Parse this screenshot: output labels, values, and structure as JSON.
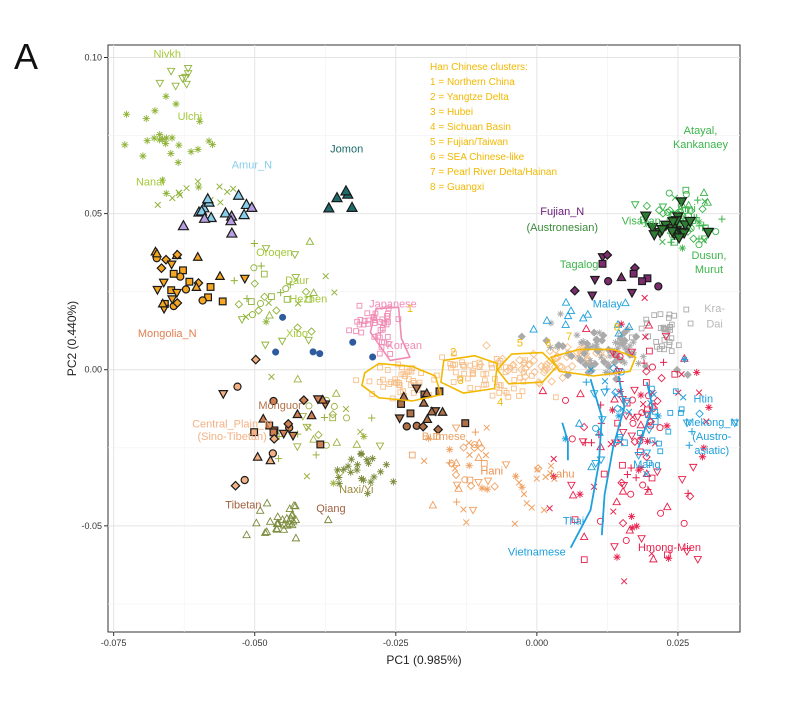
{
  "panel_label": "A",
  "chart_data": {
    "type": "scatter",
    "xlabel": "PC1 (0.985%)",
    "ylabel": "PC2 (0.440%)",
    "xlim": [
      -0.076,
      0.036
    ],
    "ylim": [
      -0.084,
      0.104
    ],
    "x_ticks": [
      -0.075,
      -0.05,
      -0.025,
      0.0,
      0.025
    ],
    "x_tick_labels": [
      "-0.075",
      "-0.050",
      "-0.025",
      "0.000",
      "0.025"
    ],
    "y_ticks": [
      -0.05,
      0.0,
      0.05,
      0.1
    ],
    "y_tick_labels": [
      "-0.05",
      "0.00",
      "0.05",
      "0.10"
    ],
    "grid": true,
    "legend_title": "Han Chinese clusters:",
    "legend_items": [
      "1 = Northern China",
      "2 = Yangtze Delta",
      "3 = Hubei",
      "4 = Sichuan Basin",
      "5 = Fujian/Taiwan",
      "6 = SEA Chinese-like",
      "7 = Pearl River Delta/Hainan",
      "8 = Guangxi"
    ],
    "legend_color": "#f2b800",
    "labels": [
      {
        "text": "Nivkh",
        "x": -0.0655,
        "y": 0.1,
        "color": "#a3c93a"
      },
      {
        "text": "Ulchi",
        "x": -0.0615,
        "y": 0.08,
        "color": "#a3c93a"
      },
      {
        "text": "Nanai",
        "x": -0.0685,
        "y": 0.059,
        "color": "#a3c93a"
      },
      {
        "text": "Amur_N",
        "x": -0.0505,
        "y": 0.0645,
        "color": "#87ceeb"
      },
      {
        "text": "Jomon",
        "x": -0.0337,
        "y": 0.0695,
        "color": "#1d6b6b"
      },
      {
        "text": "Oroqen",
        "x": -0.0465,
        "y": 0.0365,
        "color": "#a3c93a"
      },
      {
        "text": "Daur",
        "x": -0.0425,
        "y": 0.0275,
        "color": "#a3c93a"
      },
      {
        "text": "Hezhen",
        "x": -0.0405,
        "y": 0.0215,
        "color": "#a3c93a"
      },
      {
        "text": "Xibo",
        "x": -0.0425,
        "y": 0.0105,
        "color": "#a3c93a"
      },
      {
        "text": "Japanese",
        "x": -0.0255,
        "y": 0.02,
        "color": "#f08cb4"
      },
      {
        "text": "Korean",
        "x": -0.0235,
        "y": 0.0067,
        "color": "#f08cb4"
      },
      {
        "text": "Mongolia_N",
        "x": -0.0655,
        "y": 0.0105,
        "color": "#e08050"
      },
      {
        "text": "Monguor",
        "x": -0.0455,
        "y": -0.0125,
        "color": "#b07048"
      },
      {
        "text": "Central_Plain_N",
        "x": -0.054,
        "y": -0.0185,
        "color": "#f4b183"
      },
      {
        "text": "(Sino-Tibetan)",
        "x": -0.054,
        "y": -0.0225,
        "color": "#f4b183"
      },
      {
        "text": "Burmese",
        "x": -0.0165,
        "y": -0.0225,
        "color": "#e8a060"
      },
      {
        "text": "Naxi/Yi",
        "x": -0.032,
        "y": -0.0395,
        "color": "#9a8a3a"
      },
      {
        "text": "Tibetan",
        "x": -0.052,
        "y": -0.0445,
        "color": "#a06040"
      },
      {
        "text": "Qiang",
        "x": -0.0365,
        "y": -0.0455,
        "color": "#a06040"
      },
      {
        "text": "Hani",
        "x": -0.008,
        "y": -0.0335,
        "color": "#e89050"
      },
      {
        "text": "Lahu",
        "x": 0.0045,
        "y": -0.0345,
        "color": "#e89050"
      },
      {
        "text": "Thai",
        "x": 0.0065,
        "y": -0.0495,
        "color": "#1ea0dc"
      },
      {
        "text": "Vietnamese",
        "x": 0.0,
        "y": -0.0595,
        "color": "#1ea0dc"
      },
      {
        "text": "Hmong-Mien",
        "x": 0.0235,
        "y": -0.058,
        "color": "#e8204c"
      },
      {
        "text": "Mang",
        "x": 0.0195,
        "y": -0.0315,
        "color": "#1ea0dc"
      },
      {
        "text": "Mekong_N",
        "x": 0.031,
        "y": -0.018,
        "color": "#1ea0dc"
      },
      {
        "text": "(Austro-",
        "x": 0.031,
        "y": -0.0225,
        "color": "#1ea0dc"
      },
      {
        "text": "asiatic)",
        "x": 0.031,
        "y": -0.027,
        "color": "#1ea0dc"
      },
      {
        "text": "Htin",
        "x": 0.0295,
        "y": -0.0105,
        "color": "#1ea0dc"
      },
      {
        "text": "Kra-",
        "x": 0.0315,
        "y": 0.0185,
        "color": "#b8b8b8"
      },
      {
        "text": "Dai",
        "x": 0.0315,
        "y": 0.0135,
        "color": "#b8b8b8"
      },
      {
        "text": "Malay",
        "x": 0.0125,
        "y": 0.02,
        "color": "#1ea0dc"
      },
      {
        "text": "Tagalog",
        "x": 0.0075,
        "y": 0.0325,
        "color": "#3cb44b"
      },
      {
        "text": "Visayan",
        "x": 0.0185,
        "y": 0.0465,
        "color": "#3cb44b"
      },
      {
        "text": "Ami",
        "x": 0.0265,
        "y": 0.0505,
        "color": "#3cb44b"
      },
      {
        "text": "Dusun,",
        "x": 0.0305,
        "y": 0.0355,
        "color": "#3cb44b"
      },
      {
        "text": "Murut",
        "x": 0.0305,
        "y": 0.031,
        "color": "#3cb44b"
      },
      {
        "text": "Atayal,",
        "x": 0.029,
        "y": 0.0755,
        "color": "#3cb44b"
      },
      {
        "text": "Kankanaey",
        "x": 0.029,
        "y": 0.071,
        "color": "#3cb44b"
      },
      {
        "text": "Fujian_N",
        "x": 0.0045,
        "y": 0.0495,
        "color": "#6a1b7a"
      },
      {
        "text": "(Austronesian)",
        "x": 0.0045,
        "y": 0.0445,
        "color": "#3a8a3a"
      },
      {
        "text": "1",
        "x": -0.0225,
        "y": 0.0185,
        "color": "#f2b800"
      },
      {
        "text": "2",
        "x": -0.0148,
        "y": 0.0045,
        "color": "#f2b800"
      },
      {
        "text": "3",
        "x": -0.0135,
        "y": -0.0045,
        "color": "#f2b800"
      },
      {
        "text": "4",
        "x": -0.0065,
        "y": -0.0115,
        "color": "#f2b800"
      },
      {
        "text": "5",
        "x": -0.003,
        "y": 0.0075,
        "color": "#f2b800"
      },
      {
        "text": "6",
        "x": 0.002,
        "y": 0.0075,
        "color": "#f2b800"
      },
      {
        "text": "7",
        "x": 0.0057,
        "y": 0.0095,
        "color": "#f2b800"
      },
      {
        "text": "8",
        "x": 0.0142,
        "y": 0.0125,
        "color": "#f2b800"
      }
    ],
    "clusters": [
      {
        "name": "nivkh",
        "cx": -0.0645,
        "cy": 0.094,
        "sx": 0.0035,
        "sy": 0.004,
        "n": 8,
        "color": "#8fb339",
        "shape": "tri-down-open",
        "seed": 11
      },
      {
        "name": "ulchi",
        "cx": -0.0655,
        "cy": 0.075,
        "sx": 0.003,
        "sy": 0.007,
        "n": 26,
        "color": "#8fb339",
        "shape": "star",
        "seed": 12
      },
      {
        "name": "nanai",
        "cx": -0.0605,
        "cy": 0.057,
        "sx": 0.003,
        "sy": 0.003,
        "n": 12,
        "color": "#8fb339",
        "shape": "x",
        "seed": 13
      },
      {
        "name": "amur",
        "cx": -0.055,
        "cy": 0.052,
        "sx": 0.003,
        "sy": 0.003,
        "n": 10,
        "color": "#87ceeb",
        "shape": "tri-up-filled-dark",
        "seed": 14
      },
      {
        "name": "jomon",
        "cx": -0.034,
        "cy": 0.055,
        "sx": 0.0012,
        "sy": 0.0035,
        "n": 5,
        "color": "#1d6b6b",
        "shape": "tri-up-filled-dark",
        "seed": 15
      },
      {
        "name": "mongolia",
        "cx": -0.062,
        "cy": 0.03,
        "sx": 0.0038,
        "sy": 0.006,
        "n": 32,
        "color": "#f5a623",
        "shape": "mixed-filled",
        "seed": 16
      },
      {
        "name": "tungusic",
        "cx": -0.046,
        "cy": 0.025,
        "sx": 0.005,
        "sy": 0.008,
        "n": 40,
        "color": "#8fb339",
        "shape": "mixed-open",
        "seed": 17
      },
      {
        "name": "japanese",
        "cx": -0.0285,
        "cy": 0.016,
        "sx": 0.0018,
        "sy": 0.0025,
        "n": 32,
        "color": "#f08cb4",
        "shape": "square-open",
        "seed": 18
      },
      {
        "name": "korean",
        "cx": -0.027,
        "cy": 0.009,
        "sx": 0.001,
        "sy": 0.002,
        "n": 8,
        "color": "#f08cb4",
        "shape": "square-open",
        "seed": 19
      },
      {
        "name": "han1",
        "cx": -0.0245,
        "cy": -0.004,
        "sx": 0.0035,
        "sy": 0.003,
        "n": 40,
        "color": "#f7c08a",
        "shape": "square-open",
        "seed": 20
      },
      {
        "name": "han2",
        "cx": -0.012,
        "cy": 0.0,
        "sx": 0.003,
        "sy": 0.003,
        "n": 30,
        "color": "#f7c08a",
        "shape": "square-open",
        "seed": 21
      },
      {
        "name": "han4",
        "cx": -0.006,
        "cy": -0.004,
        "sx": 0.003,
        "sy": 0.003,
        "n": 30,
        "color": "#f7c08a",
        "shape": "square-open",
        "seed": 22
      },
      {
        "name": "han5",
        "cx": -0.001,
        "cy": 0.001,
        "sx": 0.003,
        "sy": 0.0025,
        "n": 30,
        "color": "#f7c08a",
        "shape": "diamond-open",
        "seed": 23
      },
      {
        "name": "han67",
        "cx": 0.0065,
        "cy": 0.004,
        "sx": 0.003,
        "sy": 0.0025,
        "n": 26,
        "color": "#f7c08a",
        "shape": "diamond-open",
        "seed": 24
      },
      {
        "name": "tibetan",
        "cx": -0.045,
        "cy": -0.048,
        "sx": 0.0025,
        "sy": 0.003,
        "n": 30,
        "color": "#7a8a3a",
        "shape": "tri-up-open",
        "seed": 25
      },
      {
        "name": "qiang",
        "cx": -0.0375,
        "cy": -0.02,
        "sx": 0.0045,
        "sy": 0.008,
        "n": 30,
        "color": "#a0b040",
        "shape": "mixed-open",
        "seed": 26
      },
      {
        "name": "naxi",
        "cx": -0.0305,
        "cy": -0.032,
        "sx": 0.0025,
        "sy": 0.003,
        "n": 22,
        "color": "#7a8a3a",
        "shape": "star",
        "seed": 27
      },
      {
        "name": "monguor",
        "cx": -0.043,
        "cy": -0.016,
        "sx": 0.0035,
        "sy": 0.004,
        "n": 16,
        "color": "#d08050",
        "shape": "mixed-filled",
        "seed": 28
      },
      {
        "name": "burmese",
        "cx": -0.0215,
        "cy": -0.012,
        "sx": 0.003,
        "sy": 0.004,
        "n": 18,
        "color": "#b07048",
        "shape": "mixed-filled",
        "seed": 29
      },
      {
        "name": "hani",
        "cx": -0.0105,
        "cy": -0.033,
        "sx": 0.0045,
        "sy": 0.008,
        "n": 45,
        "color": "#f0a060",
        "shape": "mixed-open",
        "seed": 30
      },
      {
        "name": "lahu",
        "cx": 0.0015,
        "cy": -0.034,
        "sx": 0.002,
        "sy": 0.004,
        "n": 10,
        "color": "#f0a060",
        "shape": "x",
        "seed": 31
      },
      {
        "name": "hmong",
        "cx": 0.016,
        "cy": -0.04,
        "sx": 0.006,
        "sy": 0.015,
        "n": 65,
        "color": "#e8204c",
        "shape": "mixed-open",
        "seed": 32
      },
      {
        "name": "kradai",
        "cx": 0.012,
        "cy": 0.006,
        "sx": 0.005,
        "sy": 0.004,
        "n": 80,
        "color": "#aaaaaa",
        "shape": "diamond-filled",
        "seed": 33
      },
      {
        "name": "kradai2",
        "cx": 0.0225,
        "cy": 0.0125,
        "sx": 0.0025,
        "sy": 0.004,
        "n": 35,
        "color": "#aaaaaa",
        "shape": "square-open",
        "seed": 34
      },
      {
        "name": "mekong",
        "cx": 0.018,
        "cy": -0.01,
        "sx": 0.006,
        "sy": 0.012,
        "n": 70,
        "color": "#e8204c",
        "shape": "mixed-open",
        "seed": 35
      },
      {
        "name": "austroasiatic",
        "cx": 0.016,
        "cy": -0.015,
        "sx": 0.006,
        "sy": 0.01,
        "n": 40,
        "color": "#1ea0dc",
        "shape": "mixed-open",
        "seed": 36
      },
      {
        "name": "htin",
        "cx": 0.021,
        "cy": -0.018,
        "sx": 0.003,
        "sy": 0.006,
        "n": 14,
        "color": "#1ea0dc",
        "shape": "square-open",
        "seed": 37
      },
      {
        "name": "malay",
        "cx": 0.011,
        "cy": 0.017,
        "sx": 0.004,
        "sy": 0.004,
        "n": 12,
        "color": "#1ea0dc",
        "shape": "tri-up-open",
        "seed": 38
      },
      {
        "name": "austronesian",
        "cx": 0.0255,
        "cy": 0.048,
        "sx": 0.003,
        "sy": 0.005,
        "n": 70,
        "color": "#3cb44b",
        "shape": "mixed-open",
        "seed": 39
      },
      {
        "name": "austronesian-filled",
        "cx": 0.025,
        "cy": 0.045,
        "sx": 0.0025,
        "sy": 0.003,
        "n": 22,
        "color": "#2e7d32",
        "shape": "tri-down-filled-dark",
        "seed": 40
      },
      {
        "name": "fujian",
        "cx": 0.015,
        "cy": 0.03,
        "sx": 0.0035,
        "sy": 0.004,
        "n": 14,
        "color": "#7b2d6e",
        "shape": "mixed-filled",
        "seed": 41
      },
      {
        "name": "centralplain",
        "cx": -0.05,
        "cy": -0.02,
        "sx": 0.003,
        "sy": 0.01,
        "n": 10,
        "color": "#f4b183",
        "shape": "mixed-filled",
        "seed": 42
      },
      {
        "name": "misc-purple",
        "cx": -0.055,
        "cy": 0.048,
        "sx": 0.004,
        "sy": 0.002,
        "n": 6,
        "color": "#b79ee0",
        "shape": "tri-up-filled-dark",
        "seed": 43
      },
      {
        "name": "blue-dots",
        "cx": -0.039,
        "cy": 0.006,
        "sx": 0.006,
        "sy": 0.005,
        "n": 6,
        "color": "#2f5a9e",
        "shape": "circle-filled",
        "seed": 44
      }
    ]
  }
}
